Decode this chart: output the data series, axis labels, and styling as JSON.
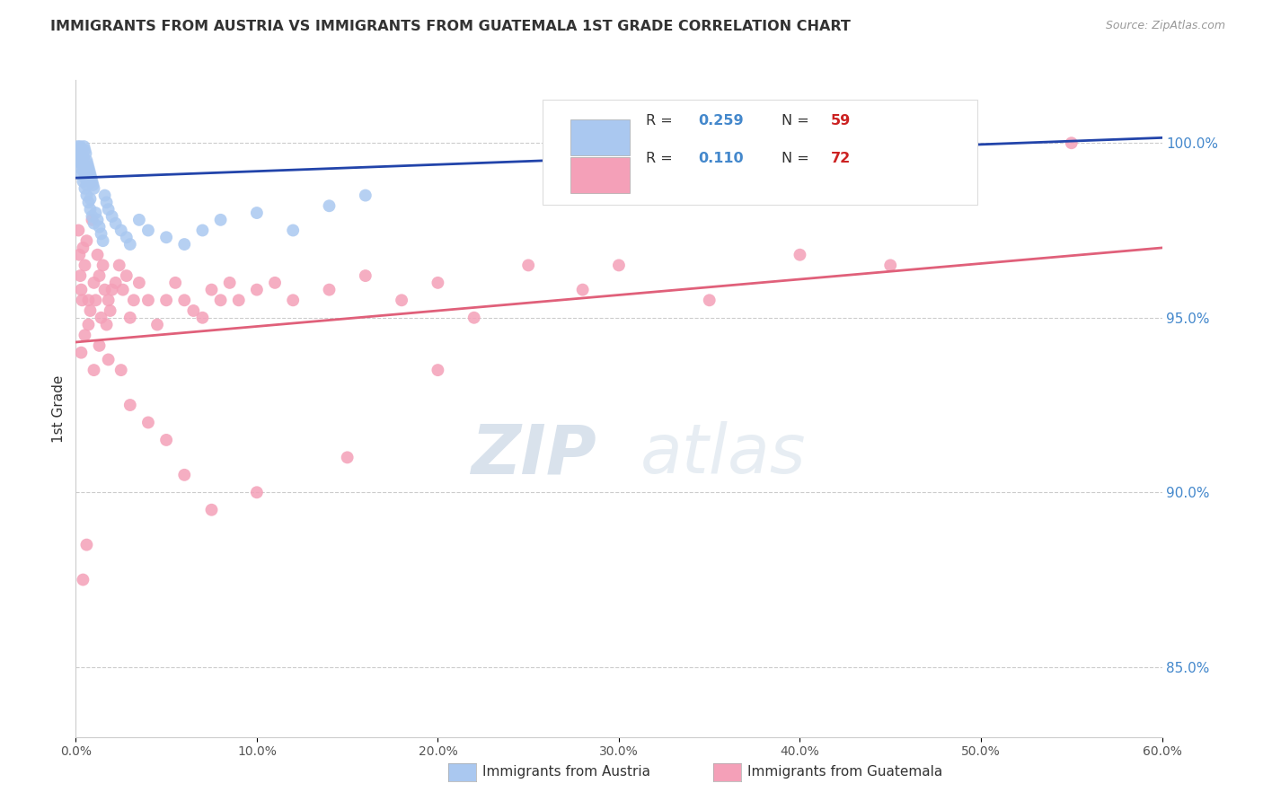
{
  "title": "IMMIGRANTS FROM AUSTRIA VS IMMIGRANTS FROM GUATEMALA 1ST GRADE CORRELATION CHART",
  "source": "Source: ZipAtlas.com",
  "ylabel": "1st Grade",
  "xlim": [
    0.0,
    60.0
  ],
  "ylim": [
    83.0,
    101.8
  ],
  "yticks": [
    85.0,
    90.0,
    95.0,
    100.0
  ],
  "ytick_labels": [
    "85.0%",
    "90.0%",
    "95.0%",
    "100.0%"
  ],
  "xticks": [
    0,
    10,
    20,
    30,
    40,
    50,
    60
  ],
  "xtick_labels": [
    "0.0%",
    "10.0%",
    "20.0%",
    "30.0%",
    "40.0%",
    "50.0%",
    "60.0%"
  ],
  "legend_row1": [
    "R = ",
    "0.259",
    "  N = ",
    "59"
  ],
  "legend_row2": [
    "R = ",
    "0.110",
    "  N = ",
    "72"
  ],
  "legend_label_austria": "Immigrants from Austria",
  "legend_label_guatemala": "Immigrants from Guatemala",
  "austria_color": "#aac8f0",
  "austria_edge_color": "#88aadd",
  "austria_line_color": "#2244aa",
  "guatemala_color": "#f4a0b8",
  "guatemala_edge_color": "#dd8899",
  "guatemala_line_color": "#e0607a",
  "austria_x": [
    0.1,
    0.15,
    0.2,
    0.25,
    0.3,
    0.35,
    0.4,
    0.45,
    0.5,
    0.55,
    0.6,
    0.65,
    0.7,
    0.75,
    0.8,
    0.85,
    0.9,
    0.95,
    1.0,
    0.1,
    0.2,
    0.3,
    0.4,
    0.5,
    0.6,
    0.7,
    0.8,
    0.9,
    1.0,
    1.1,
    1.2,
    1.3,
    1.4,
    1.5,
    1.6,
    1.7,
    1.8,
    2.0,
    2.2,
    2.5,
    2.8,
    3.0,
    3.5,
    4.0,
    5.0,
    6.0,
    7.0,
    8.0,
    10.0,
    12.0,
    14.0,
    16.0,
    0.2,
    0.3,
    0.4,
    0.5,
    0.6,
    0.8,
    48.0
  ],
  "austria_y": [
    99.9,
    99.8,
    99.7,
    99.9,
    99.8,
    99.7,
    99.6,
    99.9,
    99.8,
    99.7,
    99.5,
    99.4,
    99.3,
    99.2,
    99.1,
    99.0,
    98.9,
    98.8,
    98.7,
    99.5,
    99.3,
    99.1,
    98.9,
    98.7,
    98.5,
    98.3,
    98.1,
    97.9,
    97.7,
    98.0,
    97.8,
    97.6,
    97.4,
    97.2,
    98.5,
    98.3,
    98.1,
    97.9,
    97.7,
    97.5,
    97.3,
    97.1,
    97.8,
    97.5,
    97.3,
    97.1,
    97.5,
    97.8,
    98.0,
    97.5,
    98.2,
    98.5,
    99.6,
    99.4,
    99.2,
    99.0,
    98.8,
    98.4,
    100.0
  ],
  "guatemala_x": [
    0.15,
    0.2,
    0.25,
    0.3,
    0.35,
    0.4,
    0.5,
    0.6,
    0.7,
    0.8,
    0.9,
    1.0,
    1.1,
    1.2,
    1.3,
    1.4,
    1.5,
    1.6,
    1.7,
    1.8,
    1.9,
    2.0,
    2.2,
    2.4,
    2.6,
    2.8,
    3.0,
    3.2,
    3.5,
    4.0,
    4.5,
    5.0,
    5.5,
    6.0,
    6.5,
    7.0,
    7.5,
    8.0,
    8.5,
    9.0,
    10.0,
    11.0,
    12.0,
    14.0,
    16.0,
    18.0,
    20.0,
    22.0,
    25.0,
    28.0,
    30.0,
    35.0,
    40.0,
    45.0,
    55.0,
    0.3,
    0.5,
    0.7,
    1.0,
    1.3,
    1.8,
    2.5,
    3.0,
    4.0,
    5.0,
    6.0,
    7.5,
    10.0,
    15.0,
    20.0,
    0.4,
    0.6
  ],
  "guatemala_y": [
    97.5,
    96.8,
    96.2,
    95.8,
    95.5,
    97.0,
    96.5,
    97.2,
    95.5,
    95.2,
    97.8,
    96.0,
    95.5,
    96.8,
    96.2,
    95.0,
    96.5,
    95.8,
    94.8,
    95.5,
    95.2,
    95.8,
    96.0,
    96.5,
    95.8,
    96.2,
    95.0,
    95.5,
    96.0,
    95.5,
    94.8,
    95.5,
    96.0,
    95.5,
    95.2,
    95.0,
    95.8,
    95.5,
    96.0,
    95.5,
    95.8,
    96.0,
    95.5,
    95.8,
    96.2,
    95.5,
    96.0,
    95.0,
    96.5,
    95.8,
    96.5,
    95.5,
    96.8,
    96.5,
    100.0,
    94.0,
    94.5,
    94.8,
    93.5,
    94.2,
    93.8,
    93.5,
    92.5,
    92.0,
    91.5,
    90.5,
    89.5,
    90.0,
    91.0,
    93.5,
    87.5,
    88.5
  ],
  "austria_trendline_x": [
    0.0,
    60.0
  ],
  "austria_trendline_y": [
    99.0,
    100.15
  ],
  "guatemala_trendline_x": [
    0.0,
    60.0
  ],
  "guatemala_trendline_y": [
    94.3,
    97.0
  ],
  "watermark_zip": "ZIP",
  "watermark_atlas": "atlas",
  "background_color": "#ffffff",
  "grid_color": "#cccccc",
  "title_color": "#333333",
  "right_axis_color": "#4488cc",
  "R_color": "#4488cc",
  "N_color": "#cc2222"
}
